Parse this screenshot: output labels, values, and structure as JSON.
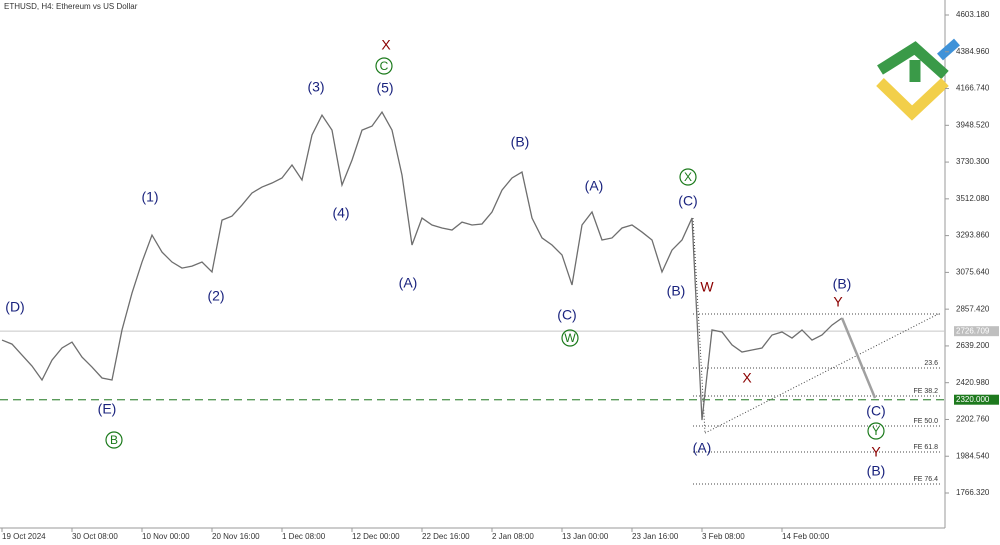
{
  "chart_data": {
    "type": "line",
    "title": "ETHUSD, H4:  Ethereum vs US Dollar",
    "categories": [
      "19 Oct 2024",
      null,
      null,
      null,
      null,
      null,
      null,
      "30 Oct 08:00",
      null,
      null,
      null,
      null,
      null,
      null,
      "10 Nov 00:00",
      null,
      null,
      null,
      null,
      null,
      null,
      "20 Nov 16:00",
      null,
      null,
      null,
      null,
      null,
      null,
      "1 Dec 08:00",
      null,
      null,
      null,
      null,
      null,
      null,
      "12 Dec 00:00",
      null,
      null,
      null,
      null,
      null,
      null,
      "22 Dec 16:00",
      null,
      null,
      null,
      null,
      null,
      null,
      "2 Jan 08:00",
      null,
      null,
      null,
      null,
      null,
      null,
      "13 Jan 00:00",
      null,
      null,
      null,
      null,
      null,
      null,
      "23 Jan 16:00",
      null,
      null,
      null,
      null,
      null,
      null,
      "3 Feb 08:00",
      null,
      null,
      null,
      null,
      null,
      null,
      null,
      "14 Feb 00:00",
      null,
      null,
      null,
      null,
      null,
      null
    ],
    "series": [
      {
        "color": "#6e6e6e",
        "values": [
          2674,
          2650,
          2585,
          2520,
          2437,
          2555,
          2627,
          2662,
          2573,
          2514,
          2449,
          2437,
          2734,
          2953,
          3137,
          3297,
          3196,
          3137,
          3101,
          3113,
          3137,
          3078,
          3386,
          3410,
          3475,
          3547,
          3582,
          3606,
          3636,
          3713,
          3624,
          3891,
          4009,
          3920,
          3594,
          3742,
          3920,
          3944,
          4027,
          3920,
          3653,
          3238,
          3398,
          3357,
          3339,
          3327,
          3374,
          3357,
          3363,
          3434,
          3564,
          3636,
          3671,
          3398,
          3280,
          3238,
          3179,
          3001,
          3357,
          3434,
          3268,
          3280,
          3339,
          3357,
          3315,
          3268,
          3078,
          3208,
          3268,
          3398,
          2199,
          2734,
          2722,
          2645,
          2603,
          2615,
          2627,
          2704,
          2722,
          2686,
          2734,
          2674,
          2704,
          2763,
          2805
        ]
      }
    ],
    "projection": {
      "color": "#a0a0a0",
      "values": [
        2805,
        2330
      ]
    },
    "trendline": [
      2122,
      2834
    ],
    "ylim": [
      1558.6,
      4692.2
    ],
    "yticks": [
      {
        "value": 4603.18,
        "label": "4603.180"
      },
      {
        "value": 4384.96,
        "label": "4384.960"
      },
      {
        "value": 4166.74,
        "label": "4166.740"
      },
      {
        "value": 3948.52,
        "label": "3948.520"
      },
      {
        "value": 3730.3,
        "label": "3730.300"
      },
      {
        "value": 3512.08,
        "label": "3512.080"
      },
      {
        "value": 3293.86,
        "label": "3293.860"
      },
      {
        "value": 3075.64,
        "label": "3075.640"
      },
      {
        "value": 2857.42,
        "label": "2857.420"
      },
      {
        "value": 2639.2,
        "label": "2639.200"
      },
      {
        "value": 2420.98,
        "label": "2420.980"
      },
      {
        "value": 2202.76,
        "label": "2202.760"
      },
      {
        "value": 1984.54,
        "label": "1984.540"
      },
      {
        "value": 1766.32,
        "label": "1766.320"
      }
    ],
    "current_price": 2726.709,
    "level": {
      "value": 2320,
      "label": "2320.000",
      "color": "#5a9a5a"
    },
    "fib_levels": [
      {
        "value": 2829
      },
      {
        "value": 2508,
        "label": "23.6"
      },
      {
        "value": 2342,
        "label": "FE 38.2"
      },
      {
        "value": 2164,
        "label": "FE 50.0"
      },
      {
        "value": 2010,
        "label": "FE 61.8"
      },
      {
        "value": 1820,
        "label": "FE 76.4"
      }
    ],
    "annotations": [
      {
        "text": "(D)",
        "color": "#1a237e"
      },
      {
        "text": "(E)",
        "color": "#1a237e"
      },
      {
        "text": "B",
        "color": "#1b7a1b",
        "circled": true
      },
      {
        "text": "(1)",
        "color": "#1a237e"
      },
      {
        "text": "(2)",
        "color": "#1a237e"
      },
      {
        "text": "(3)",
        "color": "#1a237e"
      },
      {
        "text": "(4)",
        "color": "#1a237e"
      },
      {
        "text": "(5)",
        "color": "#1a237e"
      },
      {
        "text": "C",
        "color": "#1b7a1b",
        "circled": true
      },
      {
        "text": "X",
        "color": "#8b0000"
      },
      {
        "text": "(A)",
        "color": "#1a237e"
      },
      {
        "text": "(B)",
        "color": "#1a237e"
      },
      {
        "text": "(A)",
        "color": "#1a237e"
      },
      {
        "text": "(C)",
        "color": "#1a237e"
      },
      {
        "text": "W",
        "color": "#1b7a1b",
        "circled": true
      },
      {
        "text": "X",
        "color": "#1b7a1b",
        "circled": true
      },
      {
        "text": "(C)",
        "color": "#1a237e"
      },
      {
        "text": "(B)",
        "color": "#1a237e"
      },
      {
        "text": "W",
        "color": "#8b0000"
      },
      {
        "text": "(A)",
        "color": "#1a237e"
      },
      {
        "text": "X",
        "color": "#8b0000"
      },
      {
        "text": "(B)",
        "color": "#1a237e"
      },
      {
        "text": "Y",
        "color": "#8b0000"
      },
      {
        "text": "(C)",
        "color": "#1a237e"
      },
      {
        "text": "Y",
        "color": "#1b7a1b",
        "circled": true
      },
      {
        "text": "Y",
        "color": "#8b0000"
      },
      {
        "text": "(B)",
        "color": "#1a237e"
      }
    ]
  }
}
